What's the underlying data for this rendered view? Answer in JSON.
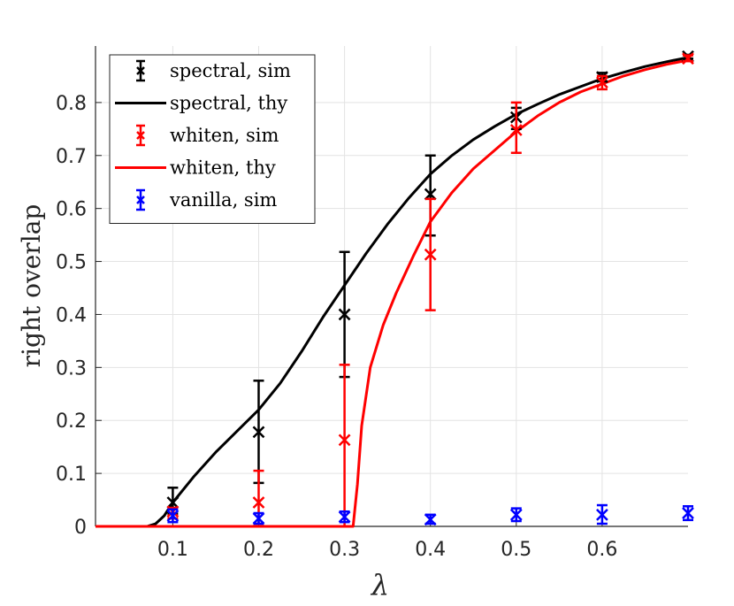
{
  "chart_data": {
    "type": "line",
    "xlabel": "λ",
    "ylabel": "right overlap",
    "xlim": [
      0.01,
      0.7
    ],
    "ylim": [
      0,
      0.9
    ],
    "grid": true,
    "legend_position": "top-left",
    "x_ticks": [
      0.1,
      0.2,
      0.3,
      0.4,
      0.5,
      0.6
    ],
    "x_tick_labels": [
      "0.1",
      "0.2",
      "0.3",
      "0.4",
      "0.5",
      "0.6"
    ],
    "y_ticks": [
      0,
      0.1,
      0.2,
      0.3,
      0.4,
      0.5,
      0.6,
      0.7,
      0.8
    ],
    "y_tick_labels": [
      "0",
      "0.1",
      "0.2",
      "0.3",
      "0.4",
      "0.5",
      "0.6",
      "0.7",
      "0.8"
    ],
    "series": [
      {
        "name": "spectral, sim",
        "kind": "errorbar",
        "color": "#000000",
        "x": [
          0.1,
          0.2,
          0.3,
          0.4,
          0.5,
          0.6,
          0.7
        ],
        "y": [
          0.045,
          0.178,
          0.4,
          0.627,
          0.772,
          0.848,
          0.887
        ],
        "err_low": [
          0.024,
          0.082,
          0.282,
          0.549,
          0.75,
          0.84,
          0.883
        ],
        "err_high": [
          0.073,
          0.275,
          0.518,
          0.7,
          0.79,
          0.856,
          0.89
        ]
      },
      {
        "name": "spectral, thy",
        "kind": "line",
        "color": "#000000",
        "x": [
          0.01,
          0.07,
          0.08,
          0.09,
          0.1,
          0.125,
          0.15,
          0.175,
          0.2,
          0.225,
          0.25,
          0.275,
          0.3,
          0.325,
          0.35,
          0.375,
          0.4,
          0.425,
          0.45,
          0.475,
          0.5,
          0.525,
          0.55,
          0.575,
          0.6,
          0.625,
          0.65,
          0.675,
          0.7
        ],
        "y": [
          0,
          0,
          0.005,
          0.02,
          0.045,
          0.095,
          0.14,
          0.18,
          0.22,
          0.27,
          0.33,
          0.395,
          0.455,
          0.515,
          0.57,
          0.62,
          0.665,
          0.7,
          0.73,
          0.755,
          0.778,
          0.797,
          0.815,
          0.83,
          0.845,
          0.857,
          0.868,
          0.877,
          0.885
        ]
      },
      {
        "name": "whiten, sim",
        "kind": "errorbar",
        "color": "#ff0000",
        "x": [
          0.1,
          0.2,
          0.3,
          0.4,
          0.5,
          0.6,
          0.7
        ],
        "y": [
          0.028,
          0.045,
          0.163,
          0.513,
          0.748,
          0.838,
          0.883
        ],
        "err_low": [
          0.015,
          0.005,
          0.0,
          0.408,
          0.705,
          0.825,
          0.878
        ],
        "err_high": [
          0.035,
          0.105,
          0.305,
          0.618,
          0.8,
          0.85,
          0.889
        ]
      },
      {
        "name": "whiten, thy",
        "kind": "line",
        "color": "#ff0000",
        "x": [
          0.01,
          0.31,
          0.315,
          0.32,
          0.33,
          0.345,
          0.36,
          0.38,
          0.4,
          0.425,
          0.45,
          0.475,
          0.5,
          0.525,
          0.55,
          0.575,
          0.6,
          0.625,
          0.65,
          0.675,
          0.7
        ],
        "y": [
          0,
          0,
          0.08,
          0.19,
          0.3,
          0.38,
          0.44,
          0.51,
          0.575,
          0.63,
          0.675,
          0.71,
          0.745,
          0.775,
          0.8,
          0.82,
          0.835,
          0.85,
          0.862,
          0.872,
          0.88
        ]
      },
      {
        "name": "vanilla, sim",
        "kind": "errorbar",
        "color": "#0000ff",
        "x": [
          0.1,
          0.2,
          0.3,
          0.4,
          0.5,
          0.6,
          0.7
        ],
        "y": [
          0.02,
          0.015,
          0.018,
          0.013,
          0.022,
          0.022,
          0.025
        ],
        "err_low": [
          0.008,
          0.005,
          0.008,
          0.005,
          0.01,
          0.005,
          0.012
        ],
        "err_high": [
          0.032,
          0.025,
          0.028,
          0.022,
          0.034,
          0.04,
          0.038
        ]
      }
    ]
  }
}
